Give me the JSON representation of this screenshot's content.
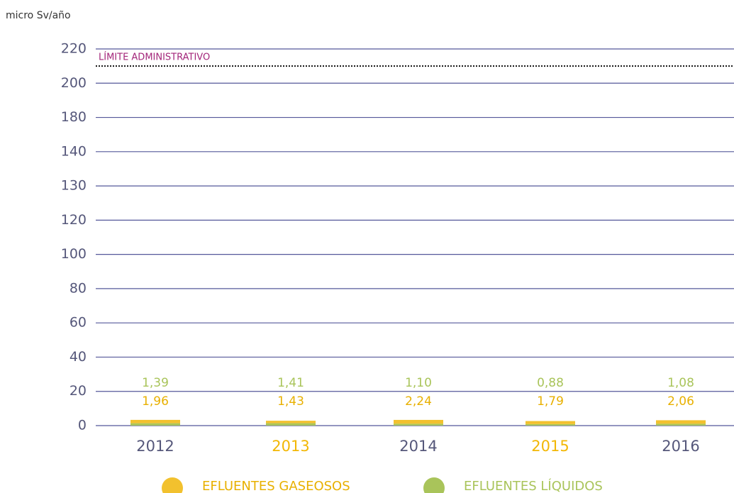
{
  "chart_data": {
    "type": "stacked_bar",
    "y_label": "micro Sv/año",
    "categories": [
      "2012",
      "2013",
      "2014",
      "2015",
      "2016"
    ],
    "category_colors": [
      "#55577a",
      "#f2b705",
      "#55577a",
      "#f2b705",
      "#55577a"
    ],
    "series": [
      {
        "name": "EFLUENTES LÍQUIDOS",
        "color": "#a9c45a",
        "values": [
          1.39,
          1.41,
          1.1,
          0.88,
          1.08
        ],
        "value_labels": [
          "1,39",
          "1,41",
          "1,10",
          "0,88",
          "1,08"
        ]
      },
      {
        "name": "EFLUENTES GASEOSOS",
        "color": "#f2c12e",
        "values": [
          1.96,
          1.43,
          2.24,
          1.79,
          2.06
        ],
        "value_labels": [
          "1,96",
          "1,43",
          "2,24",
          "1,79",
          "2,06"
        ]
      }
    ],
    "legend_order": [
      1,
      0
    ],
    "ylim": [
      0,
      220
    ],
    "yticks": [
      0,
      20,
      40,
      60,
      80,
      100,
      120,
      130,
      140,
      180,
      200,
      220
    ],
    "grid": true,
    "limit": {
      "label": "LÍMITE ADMINISTRATIVO",
      "value": 210,
      "color": "#a3267a"
    }
  }
}
